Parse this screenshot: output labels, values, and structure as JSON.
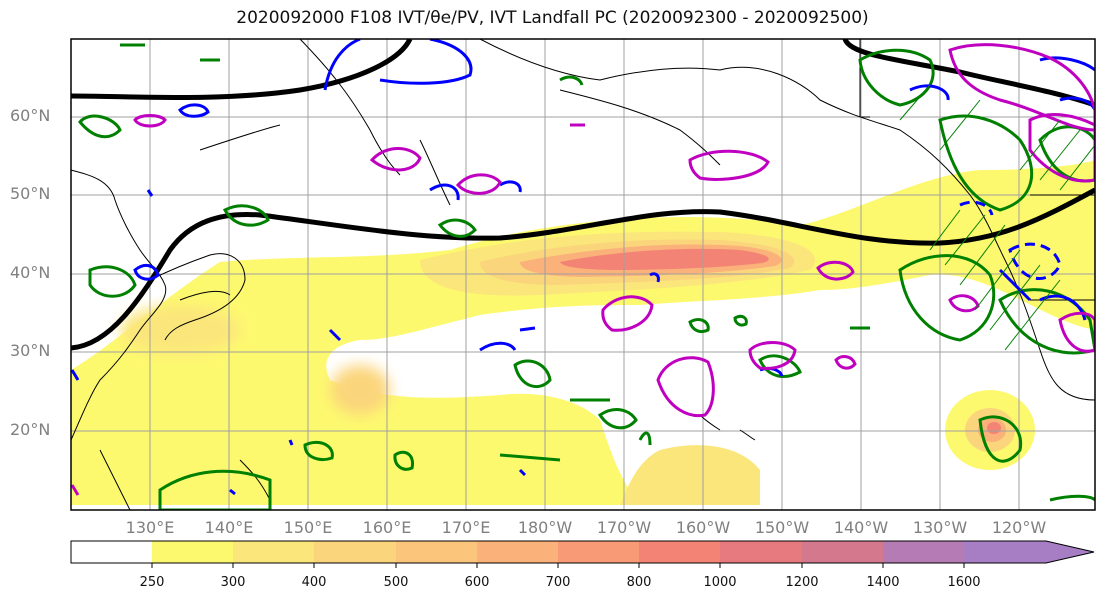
{
  "title": "2020092000 F108 IVT/θe/PV, IVT Landfall PC (2020092300 - 2020092500)",
  "lat_labels": [
    "60°N",
    "50°N",
    "40°N",
    "30°N",
    "20°N"
  ],
  "lon_labels": [
    "130°E",
    "140°E",
    "150°E",
    "160°E",
    "170°E",
    "180°W",
    "170°W",
    "160°W",
    "150°W",
    "140°W",
    "130°W",
    "120°W"
  ],
  "colorbar": {
    "ticks": [
      "250",
      "300",
      "400",
      "500",
      "600",
      "700",
      "800",
      "1000",
      "1200",
      "1400",
      "1600"
    ],
    "colors": [
      "#ffffff",
      "#fdf96f",
      "#fbe67b",
      "#fbd57c",
      "#fbc57c",
      "#fab17a",
      "#f99a77",
      "#f38375",
      "#e77a7f",
      "#d4788e",
      "#b47bb5",
      "#a77dc3"
    ]
  },
  "colors": {
    "jet_contour": "#000000",
    "theta_e_contour": "#008000",
    "pv_positive": "#0000ff",
    "pv_special": "#c000c0",
    "coastline": "#000000",
    "grid": "#a0a0a0"
  }
}
